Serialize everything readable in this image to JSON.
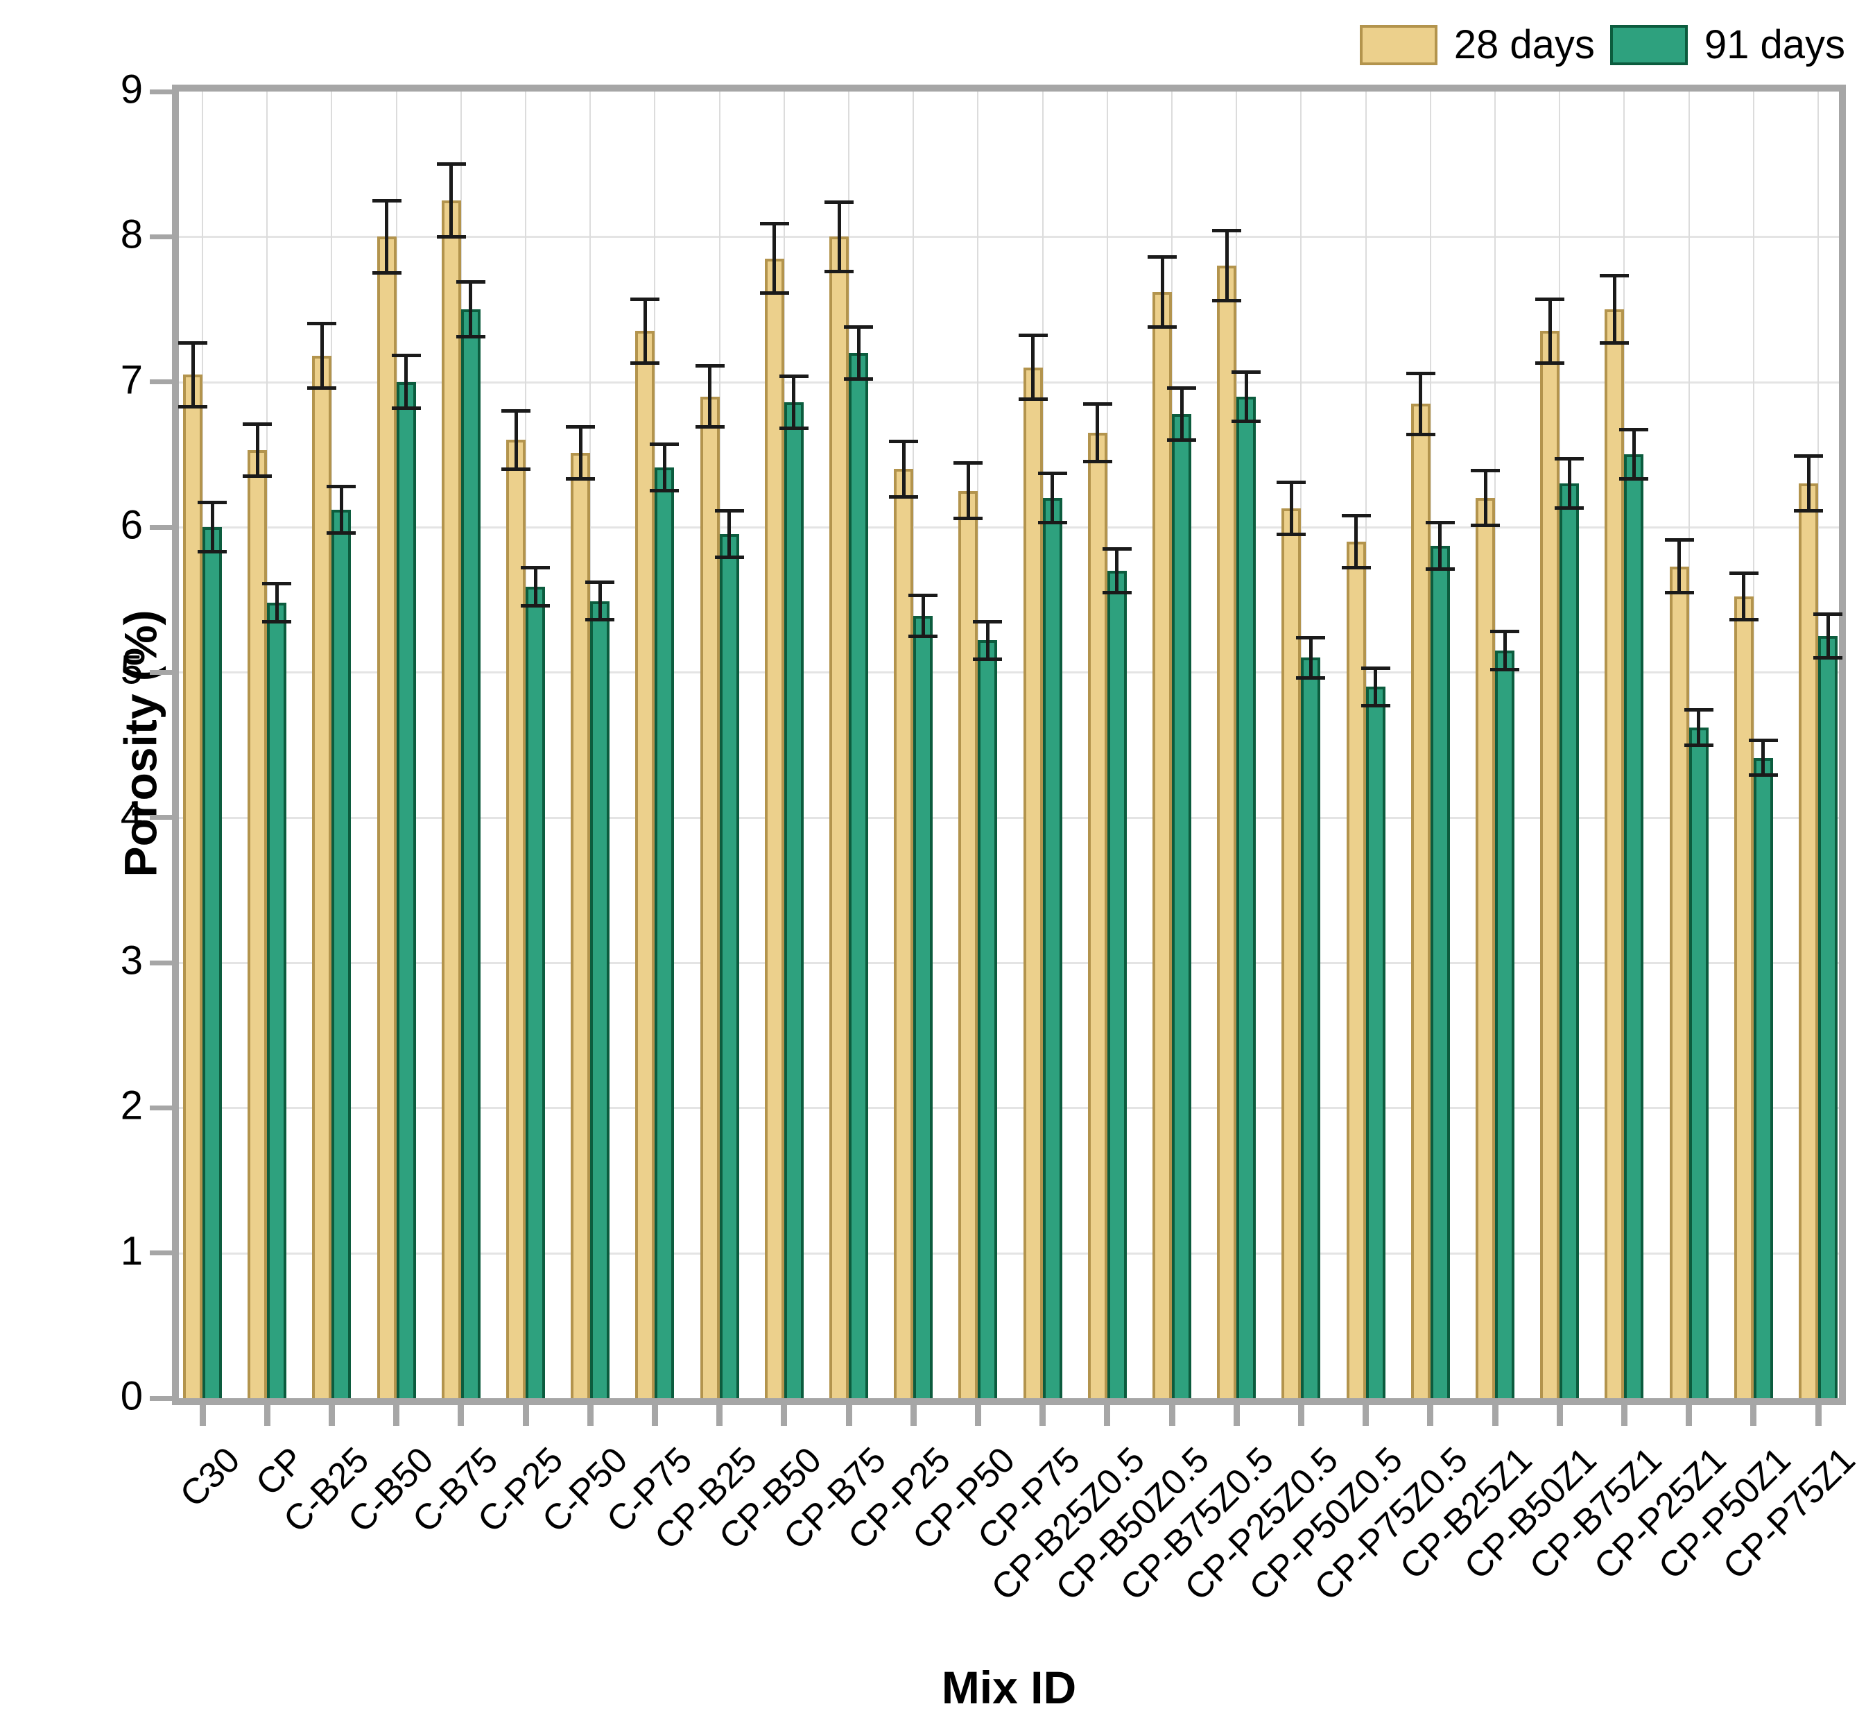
{
  "chart_data": {
    "type": "bar",
    "title": "",
    "xlabel": "Mix ID",
    "ylabel": "Porosity (%)",
    "ylim": [
      0,
      9
    ],
    "yticks": [
      0,
      1,
      2,
      3,
      4,
      5,
      6,
      7,
      8,
      9
    ],
    "grid": true,
    "legend_position": "top-right",
    "categories": [
      "C30",
      "CP",
      "C-B25",
      "C-B50",
      "C-B75",
      "C-P25",
      "C-P50",
      "C-P75",
      "CP-B25",
      "CP-B50",
      "CP-B75",
      "CP-P25",
      "CP-P50",
      "CP-P75",
      "CP-B25Z0.5",
      "CP-B50Z0.5",
      "CP-B75Z0.5",
      "CP-P25Z0.5",
      "CP-P50Z0.5",
      "CP-P75Z0.5",
      "CP-B25Z1",
      "CP-B50Z1",
      "CP-B75Z1",
      "CP-P25Z1",
      "CP-P50Z1",
      "CP-P75Z1"
    ],
    "series": [
      {
        "name": "28 days",
        "fill": "#ecd08c",
        "border": "#b3944d",
        "values": [
          7.05,
          6.53,
          7.18,
          8.0,
          8.25,
          6.6,
          6.51,
          7.35,
          6.9,
          7.85,
          8.0,
          6.4,
          6.25,
          7.1,
          6.65,
          7.62,
          7.8,
          6.13,
          5.9,
          6.85,
          6.2,
          7.35,
          7.5,
          5.73,
          5.52,
          6.3
        ],
        "errors": [
          0.22,
          0.18,
          0.22,
          0.25,
          0.25,
          0.2,
          0.18,
          0.22,
          0.21,
          0.24,
          0.24,
          0.19,
          0.19,
          0.22,
          0.2,
          0.24,
          0.24,
          0.18,
          0.18,
          0.21,
          0.19,
          0.22,
          0.23,
          0.18,
          0.16,
          0.19
        ]
      },
      {
        "name": "91 days",
        "fill": "#2ea17e",
        "border": "#0c5c3e",
        "values": [
          6.0,
          5.48,
          6.12,
          7.0,
          7.5,
          5.59,
          5.49,
          6.41,
          5.95,
          6.86,
          7.2,
          5.39,
          5.22,
          6.2,
          5.7,
          6.78,
          6.9,
          5.1,
          4.9,
          5.87,
          5.15,
          6.3,
          6.5,
          4.62,
          4.41,
          5.25
        ],
        "errors": [
          0.17,
          0.13,
          0.16,
          0.18,
          0.19,
          0.13,
          0.13,
          0.16,
          0.16,
          0.18,
          0.18,
          0.14,
          0.13,
          0.17,
          0.15,
          0.18,
          0.17,
          0.14,
          0.13,
          0.16,
          0.13,
          0.17,
          0.17,
          0.12,
          0.12,
          0.15
        ]
      }
    ],
    "colors": {
      "error_bar": "#1a1a1a",
      "grid_horizontal": "#e4e4e4",
      "grid_vertical": "#dcdcdc",
      "axis": "#a6a6a6",
      "text": "#000000",
      "background": "#ffffff"
    }
  }
}
